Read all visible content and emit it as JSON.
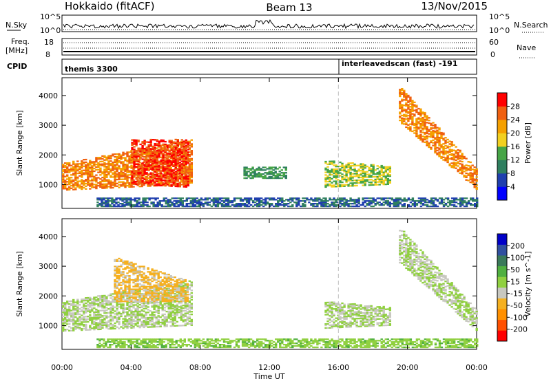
{
  "header": {
    "title": "Hokkaido (fitACF)",
    "beam": "Beam 13",
    "date": "13/Nov/2015"
  },
  "strip_labels": {
    "nsky": "N.Sky",
    "nsearch": "N.Search",
    "freq": "Freq.",
    "freq_unit": "[MHz]",
    "nave": "Nave",
    "cpid": "CPID",
    "nsky_ticks": [
      "10^5",
      "10^0"
    ],
    "nsearch_ticks": [
      "10^5",
      "10^0"
    ],
    "freq_ticks": [
      "18",
      "8"
    ],
    "nave_ticks": [
      "60",
      "0"
    ]
  },
  "cpid_segments": [
    {
      "label": "themis 3300",
      "start_hour": 0
    },
    {
      "label": "interleavedscan (fast) -191",
      "start_hour": 16
    }
  ],
  "colors": {
    "power": [
      "#0000ff",
      "#1f3fae",
      "#2f7f5f",
      "#46a546",
      "#f2d020",
      "#f5a000",
      "#f06010",
      "#ff0000"
    ],
    "velocity": [
      "#ff0000",
      "#ff5000",
      "#ff9000",
      "#f5b020",
      "#c8c8c0",
      "#90d040",
      "#50b040",
      "#3a7a5a",
      "#3050a0",
      "#0000c8"
    ]
  },
  "chart_data": [
    {
      "type": "heatmap",
      "panel": "power",
      "xlabel": "",
      "ylabel": "Slant Range [km]",
      "xlim": [
        0,
        24
      ],
      "ylim": [
        200,
        4600
      ],
      "x_ticks": [
        "00:00",
        "04:00",
        "08:00",
        "12:00",
        "16:00",
        "20:00",
        "00:00"
      ],
      "y_ticks": [
        1000,
        2000,
        3000,
        4000
      ],
      "colorbar": {
        "label": "Power [dB]",
        "range": [
          0,
          32
        ],
        "ticks": [
          4,
          8,
          12,
          16,
          20,
          24,
          28
        ]
      },
      "features": [
        {
          "t0": 0.0,
          "t1": 7.5,
          "r_low": [
            800,
            1000
          ],
          "r_high": [
            1700,
            2500
          ],
          "level": 24,
          "desc": "morning echo band"
        },
        {
          "t0": 4.0,
          "t1": 7.3,
          "r_low": [
            1000,
            900
          ],
          "r_high": [
            2500,
            2500
          ],
          "level": 28,
          "desc": "streaks"
        },
        {
          "t0": 10.5,
          "t1": 13.0,
          "r_low": [
            1200,
            1200
          ],
          "r_high": [
            1600,
            1600
          ],
          "level": 12
        },
        {
          "t0": 15.2,
          "t1": 19.0,
          "r_low": [
            900,
            1000
          ],
          "r_high": [
            1800,
            1600
          ],
          "level": 16
        },
        {
          "t0": 19.5,
          "t1": 24.0,
          "r_low": [
            3100,
            800
          ],
          "r_high": [
            4300,
            1500
          ],
          "level": 24,
          "desc": "evening descending arc"
        },
        {
          "t0": 2.0,
          "t1": 24.0,
          "r_low": [
            250,
            250
          ],
          "r_high": [
            550,
            550
          ],
          "level": 8,
          "desc": "near-range clutter"
        }
      ]
    },
    {
      "type": "heatmap",
      "panel": "velocity",
      "xlabel": "Time UT",
      "ylabel": "Slant Range [km]",
      "xlim": [
        0,
        24
      ],
      "ylim": [
        200,
        4600
      ],
      "x_ticks": [
        "00:00",
        "04:00",
        "08:00",
        "12:00",
        "16:00",
        "20:00",
        "00:00"
      ],
      "y_ticks": [
        1000,
        2000,
        3000,
        4000
      ],
      "colorbar": {
        "label": "Velocity [m s^-1]",
        "range": [
          -250,
          250
        ],
        "ticks": [
          200,
          100,
          50,
          15,
          -15,
          -50,
          -100,
          -200
        ]
      },
      "features": [
        {
          "t0": 0.0,
          "t1": 7.5,
          "r_low": [
            800,
            1000
          ],
          "r_high": [
            1800,
            2500
          ],
          "level": 0,
          "desc": "low-velocity ground scatter"
        },
        {
          "t0": 3.0,
          "t1": 7.3,
          "r_low": [
            1800,
            1800
          ],
          "r_high": [
            3300,
            2500
          ],
          "level": -60
        },
        {
          "t0": 15.2,
          "t1": 19.0,
          "r_low": [
            900,
            1000
          ],
          "r_high": [
            1800,
            1600
          ],
          "level": 0
        },
        {
          "t0": 19.5,
          "t1": 24.0,
          "r_low": [
            3100,
            800
          ],
          "r_high": [
            4300,
            1500
          ],
          "level": 0
        },
        {
          "t0": 2.0,
          "t1": 24.0,
          "r_low": [
            250,
            250
          ],
          "r_high": [
            550,
            550
          ],
          "level": 30
        }
      ]
    }
  ]
}
